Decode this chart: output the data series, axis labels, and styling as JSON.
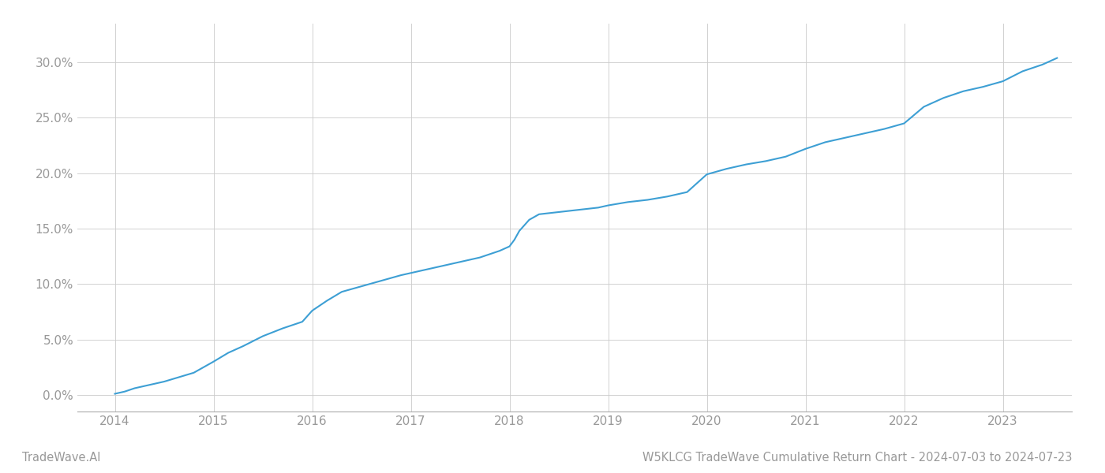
{
  "title": "W5KLCG TradeWave Cumulative Return Chart - 2024-07-03 to 2024-07-23",
  "watermark": "TradeWave.AI",
  "line_color": "#3d9fd4",
  "background_color": "#ffffff",
  "grid_color": "#cccccc",
  "x_values": [
    2014.0,
    2014.1,
    2014.2,
    2014.35,
    2014.5,
    2014.65,
    2014.8,
    2015.0,
    2015.15,
    2015.3,
    2015.5,
    2015.7,
    2015.9,
    2016.0,
    2016.15,
    2016.3,
    2016.5,
    2016.7,
    2016.9,
    2017.0,
    2017.15,
    2017.3,
    2017.5,
    2017.7,
    2017.9,
    2018.0,
    2018.05,
    2018.1,
    2018.2,
    2018.3,
    2018.5,
    2018.7,
    2018.9,
    2019.0,
    2019.2,
    2019.4,
    2019.6,
    2019.8,
    2020.0,
    2020.2,
    2020.4,
    2020.6,
    2020.8,
    2021.0,
    2021.2,
    2021.4,
    2021.6,
    2021.8,
    2022.0,
    2022.2,
    2022.4,
    2022.6,
    2022.8,
    2023.0,
    2023.2,
    2023.4,
    2023.55
  ],
  "y_values": [
    0.001,
    0.003,
    0.006,
    0.009,
    0.012,
    0.016,
    0.02,
    0.03,
    0.038,
    0.044,
    0.053,
    0.06,
    0.066,
    0.076,
    0.085,
    0.093,
    0.098,
    0.103,
    0.108,
    0.11,
    0.113,
    0.116,
    0.12,
    0.124,
    0.13,
    0.134,
    0.14,
    0.148,
    0.158,
    0.163,
    0.165,
    0.167,
    0.169,
    0.171,
    0.174,
    0.176,
    0.179,
    0.183,
    0.199,
    0.204,
    0.208,
    0.211,
    0.215,
    0.222,
    0.228,
    0.232,
    0.236,
    0.24,
    0.245,
    0.26,
    0.268,
    0.274,
    0.278,
    0.283,
    0.292,
    0.298,
    0.304
  ],
  "xlim": [
    2013.62,
    2023.7
  ],
  "ylim": [
    -0.015,
    0.335
  ],
  "xticks": [
    2014,
    2015,
    2016,
    2017,
    2018,
    2019,
    2020,
    2021,
    2022,
    2023
  ],
  "yticks": [
    0.0,
    0.05,
    0.1,
    0.15,
    0.2,
    0.25,
    0.3
  ],
  "ytick_labels": [
    "0.0%",
    "5.0%",
    "10.0%",
    "15.0%",
    "20.0%",
    "25.0%",
    "30.0%"
  ],
  "line_width": 1.5,
  "tick_label_color": "#999999",
  "title_fontsize": 10.5,
  "watermark_fontsize": 10.5,
  "axis_label_fontsize": 11
}
